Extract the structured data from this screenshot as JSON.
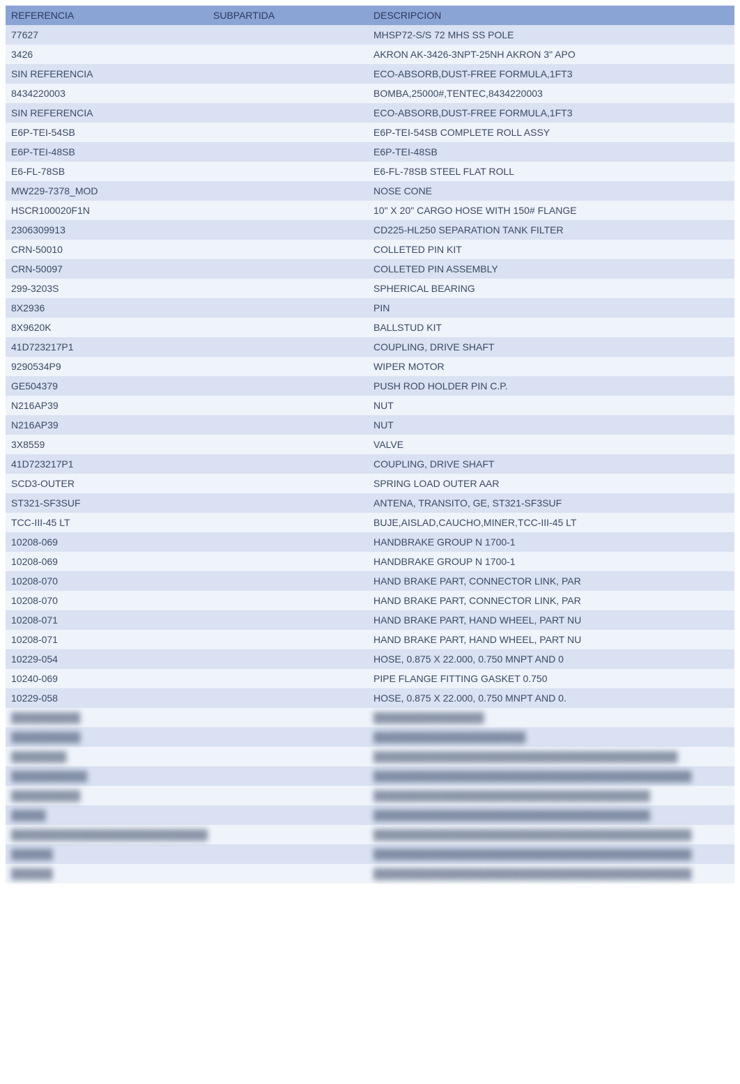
{
  "table": {
    "header_bg": "#8ba4d6",
    "header_color": "#2a3a5a",
    "row_bg_alt": [
      "#d9e1f2",
      "#eff3fa"
    ],
    "row_color": "#3a4a66",
    "columns": [
      "REFERENCIA",
      "SUBPARTIDA",
      "DESCRIPCION"
    ],
    "rows": [
      {
        "ref": "77627",
        "sub": "",
        "desc": "MHSP72-S/S 72 MHS SS POLE"
      },
      {
        "ref": "3426",
        "sub": "",
        "desc": "AKRON AK-3426-3NPT-25NH AKRON 3\" APO"
      },
      {
        "ref": "SIN REFERENCIA",
        "sub": "",
        "desc": "ECO-ABSORB,DUST-FREE FORMULA,1FT3"
      },
      {
        "ref": "8434220003",
        "sub": "",
        "desc": "BOMBA,25000#,TENTEC,8434220003"
      },
      {
        "ref": "SIN REFERENCIA",
        "sub": "",
        "desc": "ECO-ABSORB,DUST-FREE FORMULA,1FT3"
      },
      {
        "ref": "E6P-TEI-54SB",
        "sub": "",
        "desc": "E6P-TEI-54SB COMPLETE ROLL ASSY"
      },
      {
        "ref": "E6P-TEI-48SB",
        "sub": "",
        "desc": "E6P-TEI-48SB"
      },
      {
        "ref": "E6-FL-78SB",
        "sub": "",
        "desc": "E6-FL-78SB STEEL FLAT ROLL"
      },
      {
        "ref": "MW229-7378_MOD",
        "sub": "",
        "desc": "NOSE CONE"
      },
      {
        "ref": "HSCR100020F1N",
        "sub": "",
        "desc": "10\" X 20\" CARGO HOSE WITH 150# FLANGE"
      },
      {
        "ref": "2306309913",
        "sub": "",
        "desc": "CD225-HL250 SEPARATION TANK FILTER"
      },
      {
        "ref": "CRN-50010",
        "sub": "",
        "desc": "COLLETED PIN KIT"
      },
      {
        "ref": "CRN-50097",
        "sub": "",
        "desc": "COLLETED PIN ASSEMBLY"
      },
      {
        "ref": "299-3203S",
        "sub": "",
        "desc": "SPHERICAL BEARING"
      },
      {
        "ref": "8X2936",
        "sub": "",
        "desc": "PIN"
      },
      {
        "ref": "8X9620K",
        "sub": "",
        "desc": "BALLSTUD KIT"
      },
      {
        "ref": "41D723217P1",
        "sub": "",
        "desc": "COUPLING, DRIVE SHAFT"
      },
      {
        "ref": "9290534P9",
        "sub": "",
        "desc": "WIPER MOTOR"
      },
      {
        "ref": "GE504379",
        "sub": "",
        "desc": "PUSH ROD HOLDER PIN C.P."
      },
      {
        "ref": "N216AP39",
        "sub": "",
        "desc": "NUT"
      },
      {
        "ref": "N216AP39",
        "sub": "",
        "desc": "NUT"
      },
      {
        "ref": "3X8559",
        "sub": "",
        "desc": "VALVE"
      },
      {
        "ref": "41D723217P1",
        "sub": "",
        "desc": "COUPLING, DRIVE SHAFT"
      },
      {
        "ref": "SCD3-OUTER",
        "sub": "",
        "desc": "SPRING LOAD OUTER AAR"
      },
      {
        "ref": "ST321-SF3SUF",
        "sub": "",
        "desc": "ANTENA, TRANSITO, GE, ST321-SF3SUF"
      },
      {
        "ref": "TCC-III-45 LT",
        "sub": "",
        "desc": "BUJE,AISLAD,CAUCHO,MINER,TCC-III-45 LT"
      },
      {
        "ref": "10208-069",
        "sub": "",
        "desc": "HANDBRAKE GROUP N 1700-1"
      },
      {
        "ref": "10208-069",
        "sub": "",
        "desc": "HANDBRAKE GROUP N 1700-1"
      },
      {
        "ref": "10208-070",
        "sub": "",
        "desc": "HAND BRAKE PART, CONNECTOR LINK, PAR"
      },
      {
        "ref": "10208-070",
        "sub": "",
        "desc": "HAND BRAKE PART, CONNECTOR LINK, PAR"
      },
      {
        "ref": "10208-071",
        "sub": "",
        "desc": "HAND BRAKE PART, HAND WHEEL, PART NU"
      },
      {
        "ref": "10208-071",
        "sub": "",
        "desc": "HAND BRAKE PART, HAND WHEEL, PART NU"
      },
      {
        "ref": "10229-054",
        "sub": "",
        "desc": "HOSE, 0.875 X 22.000, 0.750 MNPT AND 0"
      },
      {
        "ref": "10240-069",
        "sub": "",
        "desc": "PIPE FLANGE FITTING GASKET 0.750"
      },
      {
        "ref": "10229-058",
        "sub": "",
        "desc": "HOSE, 0.875 X 22.000, 0.750 MNPT AND 0."
      },
      {
        "ref": "██████████",
        "sub": "",
        "desc": "████████████████",
        "blurred": true
      },
      {
        "ref": "██████████",
        "sub": "",
        "desc": "██████████████████████",
        "blurred": true
      },
      {
        "ref": "████████",
        "sub": "",
        "desc": "████████████████████████████████████████████",
        "blurred": true
      },
      {
        "ref": "███████████",
        "sub": "",
        "desc": "██████████████████████████████████████████████",
        "blurred": true
      },
      {
        "ref": "██████████",
        "sub": "",
        "desc": "████████████████████████████████████████",
        "blurred": true
      },
      {
        "ref": "█████",
        "sub": "",
        "desc": "████████████████████████████████████████",
        "blurred": true
      },
      {
        "ref": "██████████████████████████████████",
        "sub": "",
        "desc": "██████████████████████████████████████████████",
        "blurred": true
      },
      {
        "ref": "██████",
        "sub": "",
        "desc": "██████████████████████████████████████████████",
        "blurred": true
      },
      {
        "ref": "██████",
        "sub": "",
        "desc": "██████████████████████████████████████████████",
        "blurred": true
      }
    ]
  }
}
